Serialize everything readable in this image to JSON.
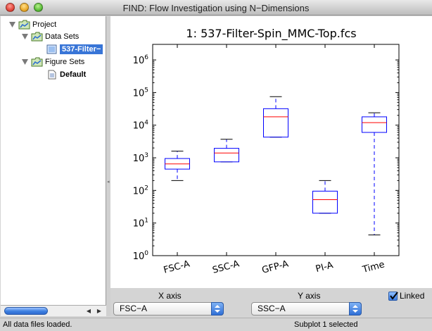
{
  "window": {
    "title": "FIND: Flow Investigation using N−Dimensions"
  },
  "tree": {
    "project": "Project",
    "data_sets": "Data Sets",
    "data_file": "537-Filter−",
    "figure_sets": "Figure Sets",
    "default": "Default"
  },
  "chart_data": {
    "type": "box",
    "title": "1: 537-Filter-Spin_MMC-Top.fcs",
    "xlabel": "",
    "ylabel": "",
    "yscale": "log",
    "ylim": [
      1,
      3000000
    ],
    "yticks": [
      "10^0",
      "10^1",
      "10^2",
      "10^3",
      "10^4",
      "10^5",
      "10^6"
    ],
    "categories": [
      "FSC-A",
      "SSC-A",
      "GFP-A",
      "PI-A",
      "Time"
    ],
    "boxes": [
      {
        "label": "FSC-A",
        "whisker_low": 200,
        "q1": 450,
        "median": 650,
        "q3": 950,
        "whisker_high": 1600
      },
      {
        "label": "SSC-A",
        "whisker_low": 750,
        "q1": 750,
        "median": 1400,
        "q3": 1950,
        "whisker_high": 3700
      },
      {
        "label": "GFP-A",
        "whisker_low": 4300,
        "q1": 4300,
        "median": 18000,
        "q3": 32000,
        "whisker_high": 75000
      },
      {
        "label": "PI-A",
        "whisker_low": 20,
        "q1": 20,
        "median": 52,
        "q3": 95,
        "whisker_high": 200
      },
      {
        "label": "Time",
        "whisker_low": 4.3,
        "q1": 6000,
        "median": 12000,
        "q3": 18000,
        "whisker_high": 24000
      }
    ],
    "grid": false,
    "colors": {
      "box": "#0000ff",
      "median": "#ff0000",
      "whisker": "#0000ff",
      "cap": "#000000"
    }
  },
  "controls": {
    "x_axis_label": "X axis",
    "y_axis_label": "Y axis",
    "x_axis_value": "FSC−A",
    "y_axis_value": "SSC−A",
    "linked_label": "Linked",
    "linked_checked": true
  },
  "status": {
    "left": "All data files loaded.",
    "right": "Subplot 1 selected"
  }
}
